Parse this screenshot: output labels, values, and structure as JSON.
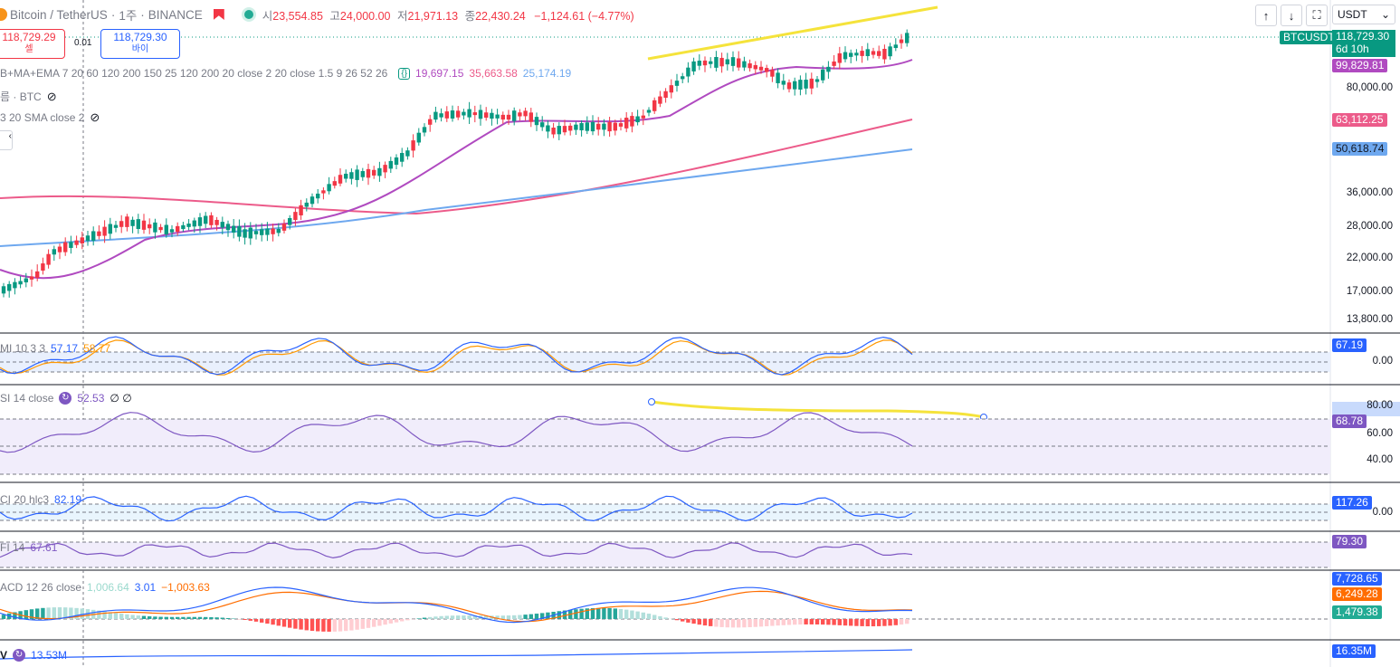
{
  "header": {
    "title": "Bitcoin / TetherUS",
    "interval": "1주",
    "exchange": "BINANCE",
    "ohlc": {
      "open_label": "시",
      "open": "23,554.85",
      "high_label": "고",
      "high": "24,000.00",
      "low_label": "저",
      "low": "21,971.13",
      "close_label": "종",
      "close": "22,430.24",
      "change": "−1,124.61 (−4.77%)"
    }
  },
  "trade": {
    "sell_price": "118,729.29",
    "sell_label": "셀",
    "spread": "0.01",
    "buy_price": "118,729.30",
    "buy_label": "바이"
  },
  "legends": {
    "ma": "B+MA+EMA 7 20 60 120 200 150 25 120 200 20 close 2 20 close 1.5 9 26 52 26",
    "ma_values": [
      "19,697.15",
      "35,663.58",
      "25,174.19"
    ],
    "vol": "름 · BTC",
    "sma": "3 20 SMA close 2",
    "smi": "MI 10 3 3",
    "smi_v1": "57.17",
    "smi_v2": "58.77",
    "rsi": "SI 14 close",
    "rsi_v": "52.53",
    "rsi_extra": "∅ ∅",
    "cci": "CI 20 hlc3",
    "cci_v": "82.19",
    "mfi": "FI 14",
    "mfi_v": "67.61",
    "macd": "ACD 12 26 close",
    "macd_v": [
      "1,006.64",
      "3.01",
      "−1,003.63"
    ],
    "obv_v": "13.53M"
  },
  "toolbar": {
    "currency": "USDT"
  },
  "price_axis": {
    "labels": [
      "80,000.00",
      "36,000.00",
      "28,000.00",
      "22,000.00",
      "17,000.00",
      "13,800.00"
    ],
    "btc_tag": "BTCUSDT",
    "last_price": "118,729.30",
    "countdown": "6d 10h",
    "tags": {
      "ma1": "99,829.81",
      "ma2": "63,112.25",
      "ma3": "50,618.74"
    }
  },
  "panes": {
    "smi_tag": "67.19",
    "smi_zero": "0.00",
    "rsi_labels": [
      "80.00",
      "60.00",
      "40.00"
    ],
    "rsi_tag": "68.78",
    "cci_tag": "117.26",
    "cci_zero": "0.00",
    "mfi_tag": "79.30",
    "macd_tags": [
      "7,728.65",
      "6,249.28",
      "1,479.38"
    ],
    "obv_tag": "16.35M"
  },
  "colors": {
    "up": "#089981",
    "down": "#f23645",
    "ma1": "#b04ac0",
    "ma2": "#ec5b8a",
    "ma3": "#6ea8ef",
    "yellow": "#f5e33b"
  }
}
